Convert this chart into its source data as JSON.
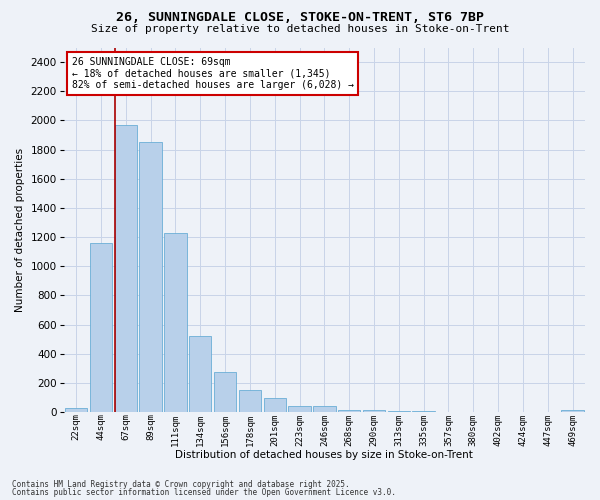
{
  "title_line1": "26, SUNNINGDALE CLOSE, STOKE-ON-TRENT, ST6 7BP",
  "title_line2": "Size of property relative to detached houses in Stoke-on-Trent",
  "xlabel": "Distribution of detached houses by size in Stoke-on-Trent",
  "ylabel": "Number of detached properties",
  "footnote1": "Contains HM Land Registry data © Crown copyright and database right 2025.",
  "footnote2": "Contains public sector information licensed under the Open Government Licence v3.0.",
  "bar_labels": [
    "22sqm",
    "44sqm",
    "67sqm",
    "89sqm",
    "111sqm",
    "134sqm",
    "156sqm",
    "178sqm",
    "201sqm",
    "223sqm",
    "246sqm",
    "268sqm",
    "290sqm",
    "313sqm",
    "335sqm",
    "357sqm",
    "380sqm",
    "402sqm",
    "424sqm",
    "447sqm",
    "469sqm"
  ],
  "bar_values": [
    30,
    1160,
    1970,
    1850,
    1230,
    520,
    275,
    155,
    95,
    40,
    40,
    18,
    15,
    8,
    5,
    3,
    2,
    2,
    1,
    1,
    18
  ],
  "bar_color": "#b8d0ea",
  "bar_edge_color": "#6baed6",
  "grid_color": "#c8d4e8",
  "background_color": "#eef2f8",
  "annotation_line1": "26 SUNNINGDALE CLOSE: 69sqm",
  "annotation_line2": "← 18% of detached houses are smaller (1,345)",
  "annotation_line3": "82% of semi-detached houses are larger (6,028) →",
  "vline_bar_index": 2,
  "vline_color": "#aa0000",
  "ylim_max": 2500,
  "ytick_max": 2400,
  "ytick_step": 200
}
